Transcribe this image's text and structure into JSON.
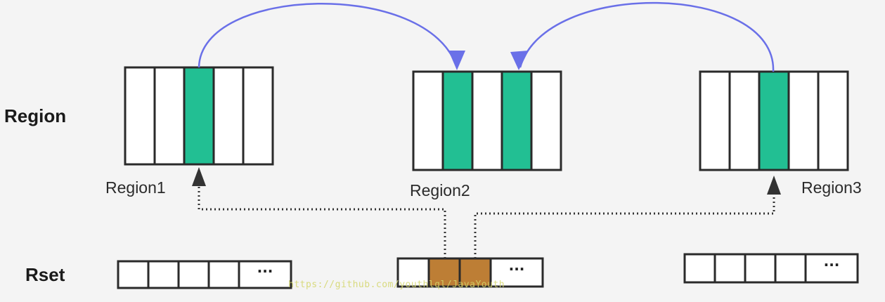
{
  "labels": {
    "region_row": "Region",
    "rset_row": "Rset"
  },
  "regions": [
    {
      "name": "Region1",
      "cells": 5,
      "highlight": [
        2
      ]
    },
    {
      "name": "Region2",
      "cells": 5,
      "highlight": [
        1,
        3
      ]
    },
    {
      "name": "Region3",
      "cells": 5,
      "highlight": [
        2
      ]
    }
  ],
  "rsets": [
    {
      "cells": 4,
      "highlight": [],
      "ellipsis": "···"
    },
    {
      "cells": 3,
      "highlight": [
        1,
        2
      ],
      "ellipsis": "···"
    },
    {
      "cells": 4,
      "highlight": [],
      "ellipsis": "···"
    }
  ],
  "colors": {
    "background": "#f4f4f4",
    "cell_border": "#2a2a2a",
    "region_highlight": "#22bf93",
    "rset_highlight": "#bd7e35",
    "reference_arrow": "#6a70e8",
    "pointer_arrow": "#333333"
  },
  "watermark": "https://github.com/youthlql/JavaYouth"
}
